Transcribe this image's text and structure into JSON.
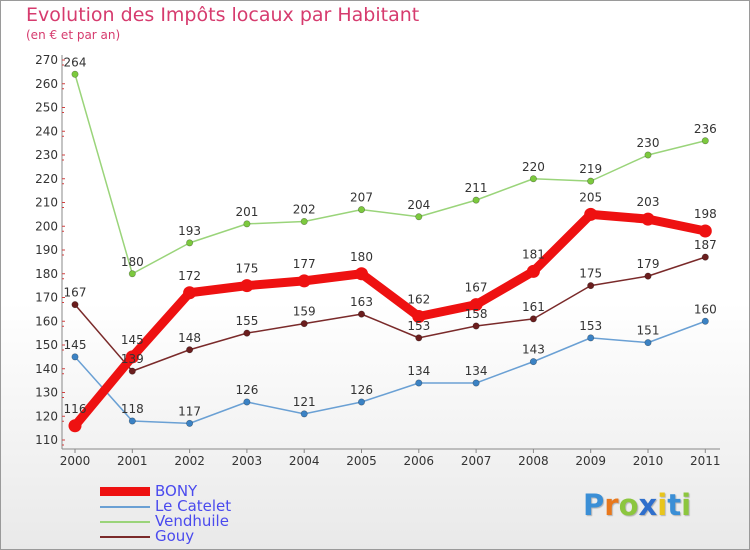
{
  "title": "Evolution des Impôts locaux par Habitant",
  "subtitle": "(en € et par an)",
  "logo": {
    "text": "Proxiti",
    "letter_colors": [
      "#3b8fd6",
      "#e8781c",
      "#8cc63e",
      "#2f6fcc",
      "#e8c51c",
      "#3b8fd6",
      "#8cc63e"
    ]
  },
  "chart_data": {
    "type": "line",
    "title": "Evolution des Impôts locaux par Habitant",
    "subtitle": "(en € et par an)",
    "xlabel": "",
    "ylabel": "",
    "ylim": [
      110,
      270
    ],
    "yticks": [
      110,
      120,
      130,
      140,
      150,
      160,
      170,
      180,
      190,
      200,
      210,
      220,
      230,
      240,
      250,
      260,
      270
    ],
    "categories": [
      "2000",
      "2001",
      "2002",
      "2003",
      "2004",
      "2005",
      "2006",
      "2007",
      "2008",
      "2009",
      "2010",
      "2011"
    ],
    "grid": false,
    "legend_position": "bottom-left",
    "series": [
      {
        "name": "BONY",
        "color": "#ee1111",
        "marker": "#ee1111",
        "bold": true,
        "values": [
          116,
          145,
          172,
          175,
          177,
          180,
          162,
          167,
          181,
          205,
          203,
          198
        ]
      },
      {
        "name": "Le Catelet",
        "color": "#6aa0d4",
        "marker": "#3b82c4",
        "bold": false,
        "values": [
          145,
          118,
          117,
          126,
          121,
          126,
          134,
          134,
          143,
          153,
          151,
          160
        ]
      },
      {
        "name": "Vendhuile",
        "color": "#9ad47a",
        "marker": "#7cc93e",
        "bold": false,
        "values": [
          264,
          180,
          193,
          201,
          202,
          207,
          204,
          211,
          220,
          219,
          230,
          236
        ]
      },
      {
        "name": "Gouy",
        "color": "#7a2a2a",
        "marker": "#6b1e1e",
        "bold": false,
        "values": [
          167,
          139,
          148,
          155,
          159,
          163,
          153,
          158,
          161,
          175,
          179,
          187
        ]
      }
    ]
  }
}
